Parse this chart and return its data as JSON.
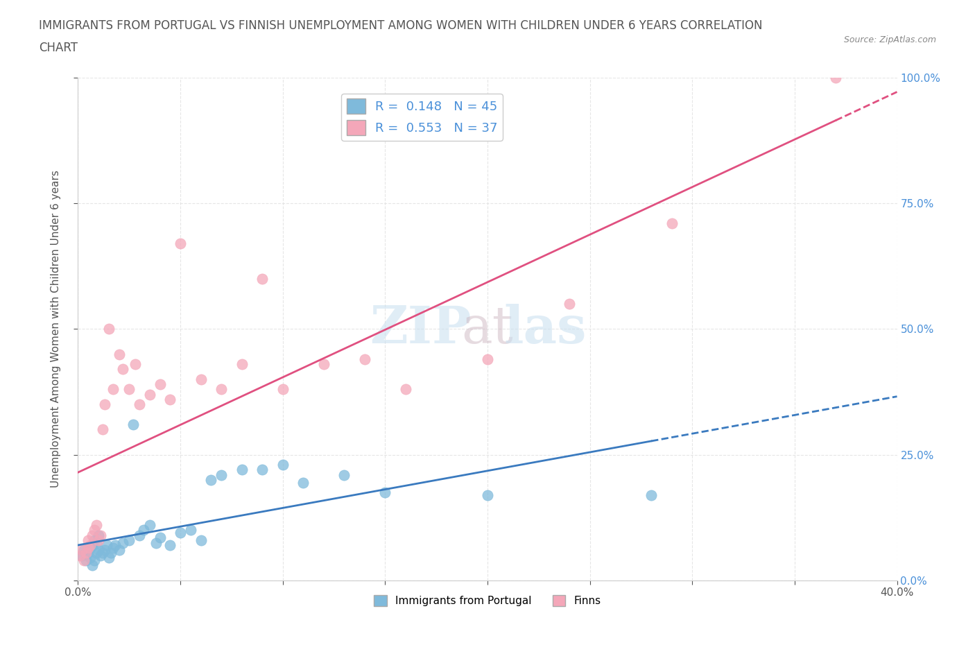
{
  "title_line1": "IMMIGRANTS FROM PORTUGAL VS FINNISH UNEMPLOYMENT AMONG WOMEN WITH CHILDREN UNDER 6 YEARS CORRELATION",
  "title_line2": "CHART",
  "source": "Source: ZipAtlas.com",
  "ylabel": "Unemployment Among Women with Children Under 6 years",
  "xlim": [
    0.0,
    0.4
  ],
  "ylim": [
    0.0,
    1.0
  ],
  "xticks": [
    0.0,
    0.05,
    0.1,
    0.15,
    0.2,
    0.25,
    0.3,
    0.35,
    0.4
  ],
  "xtick_labels": [
    "0.0%",
    "",
    "",
    "",
    "",
    "",
    "",
    "",
    "40.0%"
  ],
  "ytick_labels_right": [
    "0.0%",
    "25.0%",
    "50.0%",
    "75.0%",
    "100.0%"
  ],
  "yticks_right": [
    0.0,
    0.25,
    0.5,
    0.75,
    1.0
  ],
  "R_blue": 0.148,
  "N_blue": 45,
  "R_pink": 0.553,
  "N_pink": 37,
  "color_blue": "#7fbadb",
  "color_pink": "#f4a7b9",
  "trend_blue": "#3a7abf",
  "trend_pink": "#e05080",
  "blue_scatter_x": [
    0.002,
    0.003,
    0.004,
    0.005,
    0.006,
    0.006,
    0.007,
    0.007,
    0.008,
    0.008,
    0.009,
    0.009,
    0.01,
    0.01,
    0.011,
    0.012,
    0.013,
    0.014,
    0.015,
    0.016,
    0.017,
    0.018,
    0.02,
    0.022,
    0.025,
    0.027,
    0.03,
    0.032,
    0.035,
    0.038,
    0.04,
    0.045,
    0.05,
    0.055,
    0.06,
    0.065,
    0.07,
    0.08,
    0.09,
    0.1,
    0.11,
    0.13,
    0.15,
    0.2,
    0.28
  ],
  "blue_scatter_y": [
    0.05,
    0.06,
    0.04,
    0.055,
    0.065,
    0.045,
    0.03,
    0.07,
    0.08,
    0.04,
    0.055,
    0.075,
    0.06,
    0.09,
    0.05,
    0.055,
    0.06,
    0.07,
    0.045,
    0.055,
    0.065,
    0.07,
    0.06,
    0.075,
    0.08,
    0.31,
    0.09,
    0.1,
    0.11,
    0.075,
    0.085,
    0.07,
    0.095,
    0.1,
    0.08,
    0.2,
    0.21,
    0.22,
    0.22,
    0.23,
    0.195,
    0.21,
    0.175,
    0.17,
    0.17
  ],
  "pink_scatter_x": [
    0.001,
    0.002,
    0.003,
    0.004,
    0.005,
    0.005,
    0.006,
    0.007,
    0.008,
    0.009,
    0.01,
    0.011,
    0.012,
    0.013,
    0.015,
    0.017,
    0.02,
    0.022,
    0.025,
    0.028,
    0.03,
    0.035,
    0.04,
    0.045,
    0.05,
    0.06,
    0.07,
    0.08,
    0.09,
    0.1,
    0.12,
    0.14,
    0.16,
    0.2,
    0.24,
    0.29,
    0.37
  ],
  "pink_scatter_y": [
    0.05,
    0.06,
    0.04,
    0.055,
    0.065,
    0.08,
    0.07,
    0.09,
    0.1,
    0.11,
    0.08,
    0.09,
    0.3,
    0.35,
    0.5,
    0.38,
    0.45,
    0.42,
    0.38,
    0.43,
    0.35,
    0.37,
    0.39,
    0.36,
    0.67,
    0.4,
    0.38,
    0.43,
    0.6,
    0.38,
    0.43,
    0.44,
    0.38,
    0.44,
    0.55,
    0.71,
    1.0
  ],
  "bg_color": "#ffffff",
  "grid_color": "#e0e0e0",
  "title_color": "#555555",
  "axis_label_color": "#555555",
  "legend_text_color": "#4a90d9"
}
